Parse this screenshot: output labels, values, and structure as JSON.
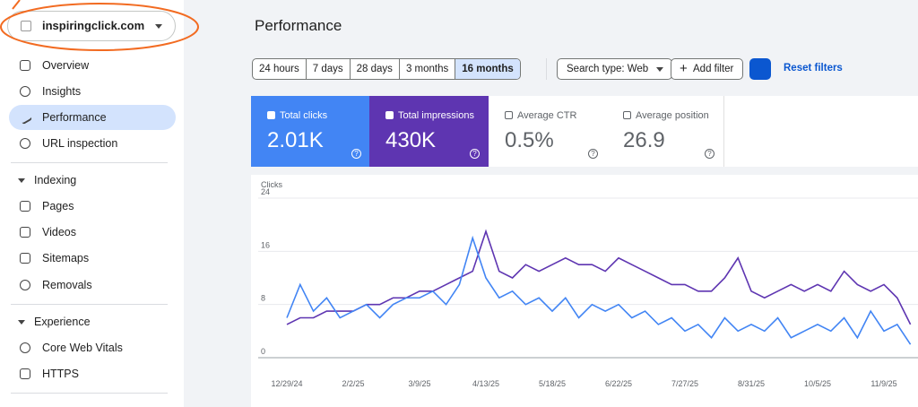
{
  "property": "inspiringclick.com",
  "nav": {
    "items": [
      "Overview",
      "Insights",
      "Performance",
      "URL inspection"
    ],
    "indexing": {
      "title": "Indexing",
      "items": [
        "Pages",
        "Videos",
        "Sitemaps",
        "Removals"
      ]
    },
    "experience": {
      "title": "Experience",
      "items": [
        "Core Web Vitals",
        "HTTPS"
      ]
    }
  },
  "header": {
    "title": "Performance"
  },
  "filters": {
    "dates": [
      "24 hours",
      "7 days",
      "28 days",
      "3 months",
      "16 months"
    ],
    "search_type": "Search type: Web",
    "add_filter": "Add filter",
    "reset": "Reset filters"
  },
  "cards": [
    {
      "label": "Total clicks",
      "value": "2.01K"
    },
    {
      "label": "Total impressions",
      "value": "430K"
    },
    {
      "label": "Average CTR",
      "value": "0.5%"
    },
    {
      "label": "Average position",
      "value": "26.9"
    }
  ],
  "chart_data": {
    "type": "line",
    "y_label": "Clicks",
    "categories": [
      "12/29/24",
      null,
      null,
      null,
      null,
      "2/2/25",
      null,
      null,
      null,
      null,
      "3/9/25",
      null,
      null,
      null,
      null,
      "4/13/25",
      null,
      null,
      null,
      null,
      "5/18/25",
      null,
      null,
      null,
      null,
      "6/22/25",
      null,
      null,
      null,
      null,
      "7/27/25",
      null,
      null,
      null,
      null,
      "8/31/25",
      null,
      null,
      null,
      null,
      "10/5/25",
      null,
      null,
      null,
      null,
      "11/9/25",
      null,
      null
    ],
    "series": [
      {
        "name": "Clicks",
        "color": "#4285f4",
        "values": [
          6,
          11,
          7,
          9,
          6,
          7,
          8,
          6,
          8,
          9,
          9,
          10,
          8,
          11,
          18,
          12,
          9,
          10,
          8,
          9,
          7,
          9,
          6,
          8,
          7,
          8,
          6,
          7,
          5,
          6,
          4,
          5,
          3,
          6,
          4,
          5,
          4,
          6,
          3,
          4,
          5,
          4,
          6,
          3,
          7,
          4,
          5,
          2
        ]
      },
      {
        "name": "Impressions",
        "color": "#5e35b1",
        "axis": "y2",
        "values": [
          750,
          900,
          900,
          1050,
          1050,
          1050,
          1200,
          1200,
          1350,
          1350,
          1500,
          1500,
          1650,
          1800,
          1950,
          2850,
          1950,
          1800,
          2100,
          1950,
          2100,
          2250,
          2100,
          2100,
          1950,
          2250,
          2100,
          1950,
          1800,
          1650,
          1650,
          1500,
          1500,
          1800,
          2250,
          1500,
          1350,
          1500,
          1650,
          1500,
          1650,
          1500,
          1950,
          1650,
          1500,
          1650,
          1350,
          750
        ]
      }
    ],
    "ylim": [
      0,
      24
    ],
    "yticks": [
      0,
      8,
      16,
      24
    ],
    "y2lim": [
      0,
      3600
    ],
    "grid": true
  }
}
